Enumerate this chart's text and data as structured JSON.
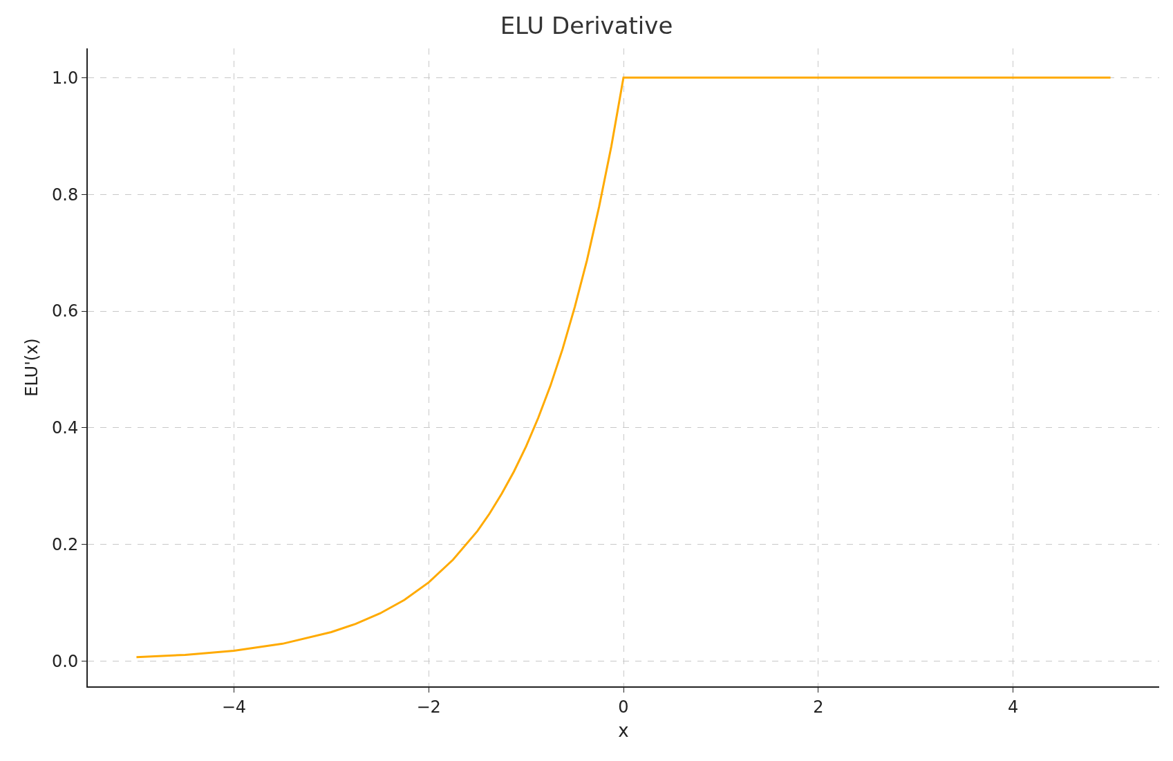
{
  "chart_data": {
    "type": "line",
    "title": "ELU Derivative",
    "xlabel": "x",
    "ylabel": "ELU'(x)",
    "series": [
      {
        "color": "#ffaa00",
        "x": [
          -5,
          -4.5,
          -4,
          -3.5,
          -3,
          -2.75,
          -2.5,
          -2.25,
          -2,
          -1.75,
          -1.5,
          -1.375,
          -1.25,
          -1.125,
          -1,
          -0.875,
          -0.75,
          -0.625,
          -0.5,
          -0.375,
          -0.25,
          -0.125,
          0,
          5
        ],
        "values": [
          0.007,
          0.011,
          0.018,
          0.03,
          0.05,
          0.064,
          0.082,
          0.105,
          0.135,
          0.174,
          0.223,
          0.253,
          0.287,
          0.325,
          0.368,
          0.417,
          0.472,
          0.535,
          0.607,
          0.687,
          0.779,
          0.882,
          1.0,
          1.0
        ]
      }
    ],
    "xlim": [
      -5.5,
      5.5
    ],
    "ylim": [
      -0.043,
      1.05
    ],
    "xticks": [
      {
        "value": -4,
        "label": "−4"
      },
      {
        "value": -2,
        "label": "−2"
      },
      0,
      2,
      4
    ],
    "yticks": [
      {
        "value": 0,
        "label": "0.0"
      },
      {
        "value": 0.2,
        "label": "0.2"
      },
      {
        "value": 0.4,
        "label": "0.4"
      },
      {
        "value": 0.6,
        "label": "0.6"
      },
      {
        "value": 0.8,
        "label": "0.8"
      },
      {
        "value": 1,
        "label": "1.0"
      }
    ],
    "grid": true,
    "marker": "none",
    "line_style": "solid"
  }
}
